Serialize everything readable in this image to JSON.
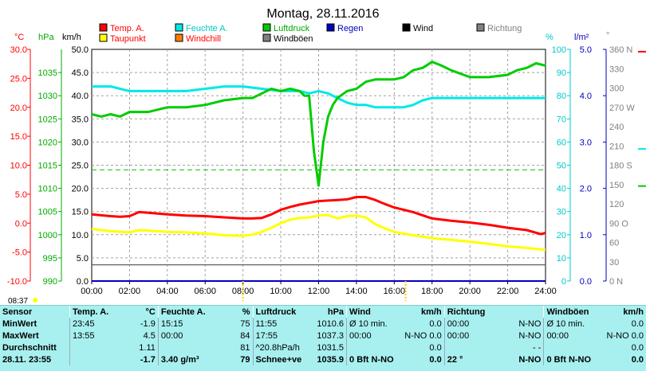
{
  "chart_data": {
    "type": "line",
    "title": "Montag, 28.11.2016",
    "x_ticks": [
      "00:00",
      "02:00",
      "04:00",
      "06:00",
      "08:00",
      "10:00",
      "12:00",
      "14:00",
      "16:00",
      "18:00",
      "20:00",
      "22:00",
      "24:00"
    ],
    "axes": {
      "temp_c": {
        "unit": "°C",
        "ticks": [
          -10.0,
          -5.0,
          0.0,
          5.0,
          10.0,
          15.0,
          20.0,
          25.0,
          30.0
        ],
        "color": "#ff0000"
      },
      "hpa": {
        "unit": "hPa",
        "ticks": [
          990,
          995,
          1000,
          1005,
          1010,
          1015,
          1020,
          1025,
          1030,
          1035
        ],
        "color": "#00aa00"
      },
      "kmh": {
        "unit": "km/h",
        "ticks": [
          0.0,
          5.0,
          10.0,
          15.0,
          20.0,
          25.0,
          30.0,
          35.0,
          40.0,
          45.0,
          50.0
        ],
        "color": "#000000"
      },
      "percent": {
        "unit": "%",
        "ticks": [
          0,
          10,
          20,
          30,
          40,
          50,
          60,
          70,
          80,
          90,
          100
        ],
        "color": "#00c8c8"
      },
      "lm2": {
        "unit": "l/m²",
        "ticks": [
          0.0,
          1.0,
          2.0,
          3.0,
          4.0,
          5.0
        ],
        "color": "#0000c0"
      },
      "direction": {
        "unit": "°",
        "ticks": [
          "0 N",
          "30",
          "60",
          "90 O",
          "120",
          "150",
          "180 S",
          "210",
          "240",
          "270 W",
          "300",
          "330",
          "360 N"
        ],
        "color": "#808080"
      }
    },
    "ylim_kmh": [
      0,
      50
    ],
    "legend": [
      {
        "name": "Temp. A.",
        "color": "#ff0000"
      },
      {
        "name": "Feuchte A.",
        "color": "#00e8e8"
      },
      {
        "name": "Luftdruck",
        "color": "#00cc00"
      },
      {
        "name": "Regen",
        "color": "#0000c0"
      },
      {
        "name": "Wind",
        "color": "#000000"
      },
      {
        "name": "Richtung",
        "color": "#808080"
      },
      {
        "name": "Taupunkt",
        "color": "#ffff00"
      },
      {
        "name": "Windchill",
        "color": "#ff8000"
      },
      {
        "name": "Windböen",
        "color": "#808080"
      }
    ],
    "series": [
      {
        "name": "Temp. A.",
        "axis": "temp_c",
        "color": "#ff0000",
        "x": [
          0,
          1,
          1.5,
          2,
          2.5,
          3,
          4,
          5,
          6,
          7,
          8,
          8.5,
          9,
          9.5,
          10,
          10.5,
          11,
          11.5,
          12,
          12.5,
          13,
          13.5,
          14,
          14.5,
          15,
          15.5,
          16,
          17,
          18,
          19,
          20,
          21,
          22,
          23,
          23.75,
          24
        ],
        "y": [
          1.5,
          1.2,
          1.1,
          1.2,
          1.9,
          1.8,
          1.5,
          1.3,
          1.2,
          1.0,
          0.8,
          0.8,
          0.9,
          1.5,
          2.3,
          2.8,
          3.2,
          3.5,
          3.8,
          3.9,
          4.0,
          4.1,
          4.5,
          4.5,
          4.0,
          3.3,
          2.7,
          1.9,
          0.8,
          0.4,
          0.1,
          -0.3,
          -0.8,
          -1.2,
          -1.9,
          -1.7
        ]
      },
      {
        "name": "Taupunkt",
        "axis": "temp_c",
        "color": "#ffff00",
        "x": [
          0,
          1,
          2,
          2.5,
          3,
          4,
          5,
          6,
          7,
          8,
          8.5,
          9,
          9.5,
          10,
          10.5,
          11,
          11.5,
          12,
          12.5,
          13,
          13.5,
          14,
          14.5,
          15,
          15.5,
          16,
          17,
          18,
          19,
          20,
          21,
          22,
          23,
          24
        ],
        "y": [
          -1.0,
          -1.4,
          -1.6,
          -1.2,
          -1.3,
          -1.5,
          -1.6,
          -1.8,
          -2.1,
          -2.2,
          -2.0,
          -1.5,
          -0.8,
          0.0,
          0.6,
          0.9,
          1.0,
          1.3,
          1.4,
          0.8,
          1.2,
          1.3,
          1.0,
          -0.2,
          -0.9,
          -1.5,
          -2.1,
          -2.6,
          -2.9,
          -3.2,
          -3.6,
          -4.0,
          -4.3,
          -4.6
        ]
      },
      {
        "name": "Feuchte A.",
        "axis": "percent",
        "color": "#00e8e8",
        "x": [
          0,
          1,
          2,
          3,
          4,
          5,
          6,
          7,
          8,
          9,
          10,
          11,
          11.5,
          12,
          12.5,
          13,
          13.5,
          14,
          14.5,
          15,
          15.5,
          16,
          16.5,
          17,
          17.5,
          18,
          19,
          20,
          21,
          22,
          23,
          24
        ],
        "y": [
          84,
          84,
          82,
          82,
          82,
          82,
          83,
          84,
          84,
          83,
          82,
          82,
          81,
          82,
          81,
          79,
          77,
          76,
          76,
          75,
          75,
          75,
          75,
          76,
          78,
          79,
          79,
          79,
          79,
          79,
          79,
          79
        ]
      },
      {
        "name": "Luftdruck",
        "axis": "hpa",
        "color": "#00cc00",
        "x": [
          0,
          0.5,
          1,
          1.5,
          2,
          3,
          4,
          5,
          6,
          7,
          8,
          8.5,
          9,
          9.5,
          10,
          10.5,
          11,
          11.25,
          11.5,
          11.75,
          12,
          12.25,
          12.5,
          12.75,
          13,
          13.5,
          14,
          14.5,
          15,
          15.5,
          16,
          16.5,
          17,
          17.5,
          18,
          18.5,
          19,
          20,
          21,
          22,
          22.5,
          23,
          23.5,
          24
        ],
        "y": [
          1026.0,
          1025.5,
          1026.0,
          1025.5,
          1026.5,
          1026.5,
          1027.5,
          1027.5,
          1028.0,
          1029.0,
          1029.5,
          1029.5,
          1030.5,
          1031.5,
          1031.0,
          1031.5,
          1031.0,
          1030.0,
          1030.0,
          1018.0,
          1010.6,
          1020.0,
          1025.5,
          1028.0,
          1029.5,
          1031.0,
          1031.5,
          1033.0,
          1033.5,
          1033.5,
          1033.5,
          1034.0,
          1035.5,
          1036.0,
          1037.3,
          1036.5,
          1035.5,
          1034.0,
          1034.0,
          1034.5,
          1035.5,
          1036.0,
          1037.0,
          1036.5
        ]
      },
      {
        "name": "Windböen",
        "axis": "kmh",
        "color": "#808080",
        "x": [
          0,
          24
        ],
        "y": [
          0,
          0
        ]
      },
      {
        "name": "Wind",
        "axis": "kmh",
        "color": "#000000",
        "x": [
          0,
          24
        ],
        "y": [
          0,
          0
        ]
      },
      {
        "name": "Regen",
        "axis": "lm2",
        "color": "#0000c0",
        "x": [
          0,
          24
        ],
        "y": [
          0,
          0
        ]
      }
    ],
    "reference_lines": [
      {
        "axis": "kmh",
        "y": 3.5,
        "color": "#606060",
        "style": "solid"
      },
      {
        "axis": "kmh",
        "y": 24.0,
        "color": "#00cc00",
        "style": "dashed"
      }
    ],
    "markers": [
      {
        "x": 8.0,
        "color": "#ffcc00"
      },
      {
        "x": 16.6,
        "color": "#ffcc00"
      }
    ],
    "right_edge_marks": [
      {
        "y_kmh": 49.5,
        "color": "#ff0000"
      },
      {
        "y_kmh": 28.5,
        "color": "#00e8e8"
      },
      {
        "y_kmh": 20.5,
        "color": "#00cc00"
      }
    ],
    "right_edge_symbol": "°",
    "time_label": "08:37",
    "grid": true
  },
  "table": {
    "headers": [
      "Sensor",
      "Temp. A.",
      "°C",
      "Feuchte A.",
      "%",
      "Luftdruck",
      "hPa",
      "Wind",
      "km/h",
      "Richtung",
      "",
      "Windböen",
      "km/h"
    ],
    "rows": [
      [
        "MinWert",
        "23:45",
        "-1.9",
        "15:15",
        "75",
        "11:55",
        "1010.6",
        "Ø 10 min.",
        "0.0",
        "00:00",
        "N-NO",
        "Ø 10 min.",
        "0.0"
      ],
      [
        "MaxWert",
        "13:55",
        "4.5",
        "00:00",
        "84",
        "17:55",
        "1037.3",
        "00:00",
        "N-NO 0.0",
        "00:00",
        "N-NO",
        "00:00",
        "N-NO 0.0"
      ],
      [
        "Durchschnitt",
        "",
        "1.11",
        "",
        "81",
        "^20.8hPa/h",
        "1031.5",
        "",
        "0.0",
        "",
        "- -",
        "",
        "0.0"
      ],
      [
        "28.11. 23:55",
        "",
        "-1.7",
        "3.40 g/m³",
        "79",
        "Schnee+ve",
        "1035.9",
        "0 Bft N-NO",
        "0.0",
        "22 °",
        "N-NO",
        "0 Bft N-NO",
        "0.0"
      ]
    ]
  }
}
